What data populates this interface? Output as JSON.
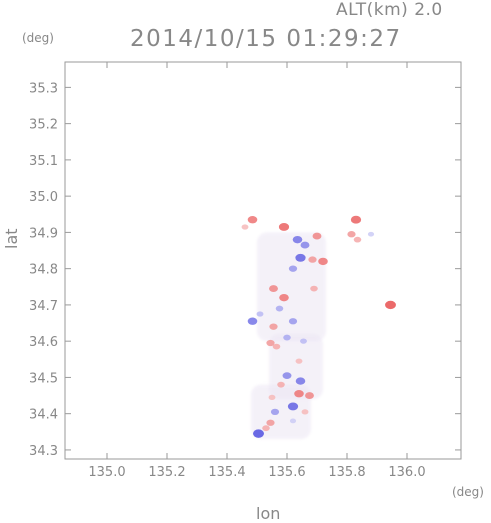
{
  "header": {
    "altitude_label": "ALT(km) 2.0",
    "timestamp": "2014/10/15 01:29:27"
  },
  "chart_data": {
    "type": "heatmap",
    "title": "2014/10/15 01:29:27",
    "xlabel": "lon",
    "ylabel": "lat",
    "x_unit": "(deg)",
    "y_unit": "(deg)",
    "xlim": [
      134.86,
      136.18
    ],
    "ylim": [
      34.275,
      35.37
    ],
    "xticks": [
      {
        "value": 135.0,
        "label": "135.0"
      },
      {
        "value": 135.2,
        "label": "135.2"
      },
      {
        "value": 135.4,
        "label": "135.4"
      },
      {
        "value": 135.6,
        "label": "135.6"
      },
      {
        "value": 135.8,
        "label": "135.8"
      },
      {
        "value": 136.0,
        "label": "136.0"
      }
    ],
    "yticks": [
      {
        "value": 34.3,
        "label": "34.3"
      },
      {
        "value": 34.4,
        "label": "34.4"
      },
      {
        "value": 34.5,
        "label": "34.5"
      },
      {
        "value": 34.6,
        "label": "34.6"
      },
      {
        "value": 34.7,
        "label": "34.7"
      },
      {
        "value": 34.8,
        "label": "34.8"
      },
      {
        "value": 34.9,
        "label": "34.9"
      },
      {
        "value": 35.0,
        "label": "35.0"
      },
      {
        "value": 35.1,
        "label": "35.1"
      },
      {
        "value": 35.2,
        "label": "35.2"
      },
      {
        "value": 35.3,
        "label": "35.3"
      }
    ],
    "grid": false,
    "colors": {
      "positive": "#e85050",
      "negative": "#5050e0",
      "neutral": "#ece6f4"
    },
    "regions": [
      {
        "lon": [
          135.5,
          135.73
        ],
        "lat": [
          34.6,
          34.9
        ]
      },
      {
        "lon": [
          135.54,
          135.72
        ],
        "lat": [
          34.44,
          34.62
        ]
      },
      {
        "lon": [
          135.48,
          135.68
        ],
        "lat": [
          34.33,
          34.48
        ]
      }
    ],
    "values": [
      {
        "lon": 135.485,
        "lat": 34.935,
        "v": 0.8
      },
      {
        "lon": 135.46,
        "lat": 34.915,
        "v": 0.4
      },
      {
        "lon": 135.59,
        "lat": 34.915,
        "v": 0.9
      },
      {
        "lon": 135.635,
        "lat": 34.88,
        "v": -0.8
      },
      {
        "lon": 135.66,
        "lat": 34.865,
        "v": -0.7
      },
      {
        "lon": 135.645,
        "lat": 34.83,
        "v": -0.9
      },
      {
        "lon": 135.685,
        "lat": 34.825,
        "v": 0.6
      },
      {
        "lon": 135.7,
        "lat": 34.89,
        "v": 0.7
      },
      {
        "lon": 135.72,
        "lat": 34.82,
        "v": 0.8
      },
      {
        "lon": 135.62,
        "lat": 34.8,
        "v": -0.6
      },
      {
        "lon": 135.83,
        "lat": 34.935,
        "v": 0.9
      },
      {
        "lon": 135.815,
        "lat": 34.895,
        "v": 0.6
      },
      {
        "lon": 135.835,
        "lat": 34.88,
        "v": 0.5
      },
      {
        "lon": 135.88,
        "lat": 34.895,
        "v": -0.3
      },
      {
        "lon": 135.945,
        "lat": 34.7,
        "v": 1.0
      },
      {
        "lon": 135.555,
        "lat": 34.745,
        "v": 0.7
      },
      {
        "lon": 135.59,
        "lat": 34.72,
        "v": 0.8
      },
      {
        "lon": 135.575,
        "lat": 34.69,
        "v": -0.5
      },
      {
        "lon": 135.69,
        "lat": 34.745,
        "v": 0.5
      },
      {
        "lon": 135.485,
        "lat": 34.655,
        "v": -0.8
      },
      {
        "lon": 135.51,
        "lat": 34.675,
        "v": -0.4
      },
      {
        "lon": 135.555,
        "lat": 34.64,
        "v": 0.6
      },
      {
        "lon": 135.62,
        "lat": 34.655,
        "v": -0.6
      },
      {
        "lon": 135.6,
        "lat": 34.61,
        "v": -0.5
      },
      {
        "lon": 135.565,
        "lat": 34.585,
        "v": 0.5
      },
      {
        "lon": 135.545,
        "lat": 34.595,
        "v": 0.6
      },
      {
        "lon": 135.655,
        "lat": 34.6,
        "v": -0.4
      },
      {
        "lon": 135.64,
        "lat": 34.545,
        "v": 0.4
      },
      {
        "lon": 135.6,
        "lat": 34.505,
        "v": -0.7
      },
      {
        "lon": 135.645,
        "lat": 34.49,
        "v": -0.8
      },
      {
        "lon": 135.58,
        "lat": 34.48,
        "v": 0.5
      },
      {
        "lon": 135.64,
        "lat": 34.455,
        "v": 0.8
      },
      {
        "lon": 135.675,
        "lat": 34.45,
        "v": 0.7
      },
      {
        "lon": 135.55,
        "lat": 34.445,
        "v": 0.4
      },
      {
        "lon": 135.62,
        "lat": 34.42,
        "v": -0.9
      },
      {
        "lon": 135.56,
        "lat": 34.405,
        "v": -0.6
      },
      {
        "lon": 135.66,
        "lat": 34.405,
        "v": 0.4
      },
      {
        "lon": 135.545,
        "lat": 34.375,
        "v": 0.6
      },
      {
        "lon": 135.505,
        "lat": 34.345,
        "v": -1.0
      },
      {
        "lon": 135.53,
        "lat": 34.36,
        "v": 0.5
      },
      {
        "lon": 135.62,
        "lat": 34.38,
        "v": -0.3
      }
    ]
  }
}
